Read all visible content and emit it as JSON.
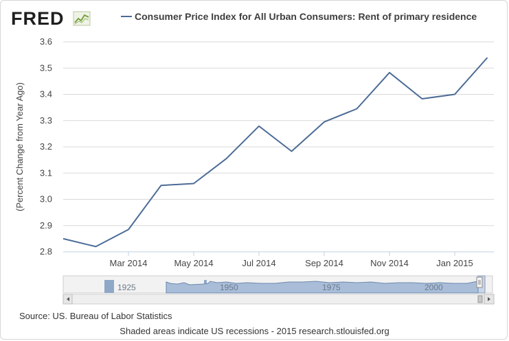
{
  "brand": {
    "name": "FRED"
  },
  "legend": {
    "label": "Consumer Price Index for All Urban Consumers: Rent of primary residence",
    "color": "#4b6b96"
  },
  "chart_data": {
    "type": "line",
    "title": "Consumer Price Index for All Urban Consumers: Rent of primary residence",
    "ylabel": "(Percent Change from Year Ago)",
    "xlabel": "",
    "ylim": [
      2.8,
      3.6
    ],
    "yticks": [
      2.8,
      2.9,
      3.0,
      3.1,
      3.2,
      3.3,
      3.4,
      3.5,
      3.6
    ],
    "ytick_labels": [
      "2.8",
      "2.9",
      "3.0",
      "3.1",
      "3.2",
      "3.3",
      "3.4",
      "3.5",
      "3.6"
    ],
    "xticks": [
      {
        "index": 2,
        "label": "Mar 2014"
      },
      {
        "index": 4,
        "label": "May 2014"
      },
      {
        "index": 6,
        "label": "Jul 2014"
      },
      {
        "index": 8,
        "label": "Sep 2014"
      },
      {
        "index": 10,
        "label": "Nov 2014"
      },
      {
        "index": 12,
        "label": "Jan 2015"
      }
    ],
    "x_range": [
      0,
      13.2
    ],
    "series": [
      {
        "name": "Consumer Price Index for All Urban Consumers: Rent of primary residence",
        "color": "#4b6b96",
        "x": [
          "Jan 2014",
          "Feb 2014",
          "Mar 2014",
          "Apr 2014",
          "May 2014",
          "Jun 2014",
          "Jul 2014",
          "Aug 2014",
          "Sep 2014",
          "Oct 2014",
          "Nov 2014",
          "Dec 2014",
          "Jan 2015",
          "Feb 2015"
        ],
        "values": [
          2.85,
          2.82,
          2.885,
          3.053,
          3.06,
          3.155,
          3.279,
          3.183,
          3.295,
          3.345,
          3.483,
          3.383,
          3.4,
          3.54
        ]
      }
    ],
    "grid": true
  },
  "navigator": {
    "labels": [
      "1925",
      "1950",
      "1975",
      "2000"
    ],
    "scroll_left_icon": "arrow-left-icon",
    "scroll_right_icon": "arrow-right-icon"
  },
  "footer": {
    "source": "Source: US. Bureau of Labor Statistics",
    "note": "Shaded areas indicate US recessions - 2015 research.stlouisfed.org"
  }
}
